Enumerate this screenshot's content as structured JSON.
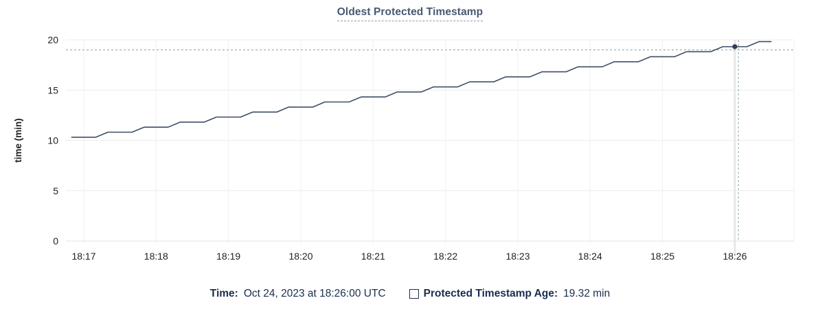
{
  "chart_data": {
    "type": "line",
    "title": "Oldest Protected Timestamp",
    "xlabel": "",
    "ylabel": "time (min)",
    "ylim": [
      0,
      20
    ],
    "yticks": [
      0,
      5,
      10,
      15,
      20
    ],
    "xticks": [
      "18:17",
      "18:18",
      "18:19",
      "18:20",
      "18:21",
      "18:22",
      "18:23",
      "18:24",
      "18:25",
      "18:26"
    ],
    "grid": true,
    "legend_position": "bottom",
    "series": [
      {
        "name": "Protected Timestamp Age",
        "points": [
          [
            "18:16:50",
            10.32
          ],
          [
            "18:17:00",
            10.32
          ],
          [
            "18:17:10",
            10.32
          ],
          [
            "18:17:20",
            10.82
          ],
          [
            "18:17:30",
            10.82
          ],
          [
            "18:17:40",
            10.82
          ],
          [
            "18:17:50",
            11.32
          ],
          [
            "18:18:00",
            11.32
          ],
          [
            "18:18:10",
            11.32
          ],
          [
            "18:18:20",
            11.82
          ],
          [
            "18:18:30",
            11.82
          ],
          [
            "18:18:40",
            11.82
          ],
          [
            "18:18:50",
            12.32
          ],
          [
            "18:19:00",
            12.32
          ],
          [
            "18:19:10",
            12.32
          ],
          [
            "18:19:20",
            12.82
          ],
          [
            "18:19:30",
            12.82
          ],
          [
            "18:19:40",
            12.82
          ],
          [
            "18:19:50",
            13.32
          ],
          [
            "18:20:00",
            13.32
          ],
          [
            "18:20:10",
            13.32
          ],
          [
            "18:20:20",
            13.82
          ],
          [
            "18:20:30",
            13.82
          ],
          [
            "18:20:40",
            13.82
          ],
          [
            "18:20:50",
            14.32
          ],
          [
            "18:21:00",
            14.32
          ],
          [
            "18:21:10",
            14.32
          ],
          [
            "18:21:20",
            14.82
          ],
          [
            "18:21:30",
            14.82
          ],
          [
            "18:21:40",
            14.82
          ],
          [
            "18:21:50",
            15.32
          ],
          [
            "18:22:00",
            15.32
          ],
          [
            "18:22:10",
            15.32
          ],
          [
            "18:22:20",
            15.82
          ],
          [
            "18:22:30",
            15.82
          ],
          [
            "18:22:40",
            15.82
          ],
          [
            "18:22:50",
            16.32
          ],
          [
            "18:23:00",
            16.32
          ],
          [
            "18:23:10",
            16.32
          ],
          [
            "18:23:20",
            16.82
          ],
          [
            "18:23:30",
            16.82
          ],
          [
            "18:23:40",
            16.82
          ],
          [
            "18:23:50",
            17.32
          ],
          [
            "18:24:00",
            17.32
          ],
          [
            "18:24:10",
            17.32
          ],
          [
            "18:24:20",
            17.82
          ],
          [
            "18:24:30",
            17.82
          ],
          [
            "18:24:40",
            17.82
          ],
          [
            "18:24:50",
            18.32
          ],
          [
            "18:25:00",
            18.32
          ],
          [
            "18:25:10",
            18.32
          ],
          [
            "18:25:20",
            18.82
          ],
          [
            "18:25:30",
            18.82
          ],
          [
            "18:25:40",
            18.82
          ],
          [
            "18:25:50",
            19.32
          ],
          [
            "18:26:00",
            19.32
          ],
          [
            "18:26:10",
            19.32
          ],
          [
            "18:26:20",
            19.82
          ],
          [
            "18:26:30",
            19.82
          ]
        ]
      }
    ],
    "highlight_point": {
      "time": "18:26:00",
      "value": 19.32
    },
    "crosshair": {
      "time": "18:26:03",
      "value": 19.0
    }
  },
  "footer": {
    "time_label": "Time:",
    "time_value": "Oct 24, 2023 at 18:26:00 UTC",
    "series_label": "Protected Timestamp Age:",
    "series_value": "19.32 min"
  },
  "colors": {
    "title": "#475872",
    "line": "#3f4e67",
    "dot": "#2f3e57",
    "crosshair": "#9db3bd",
    "grid_h": "#ececec",
    "grid_v": "#f1f1f1",
    "axis_line": "#e3e3e3",
    "hover_column": "#e7e7e7",
    "tick_text": "#1f1f1f",
    "legend_text": "#1b2d4e"
  }
}
